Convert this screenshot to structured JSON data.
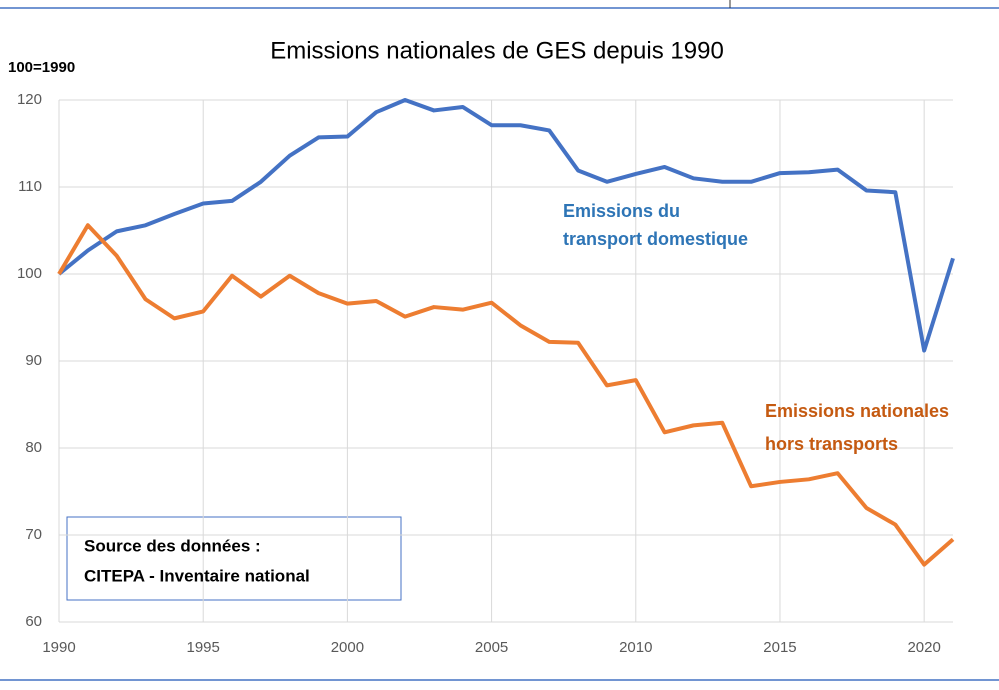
{
  "chart_data": {
    "type": "line",
    "title": "Emissions nationales de GES depuis 1990",
    "y_axis_label": "100=1990",
    "x": [
      1990,
      1991,
      1992,
      1993,
      1994,
      1995,
      1996,
      1997,
      1998,
      1999,
      2000,
      2001,
      2002,
      2003,
      2004,
      2005,
      2006,
      2007,
      2008,
      2009,
      2010,
      2011,
      2012,
      2013,
      2014,
      2015,
      2016,
      2017,
      2018,
      2019,
      2020,
      2021
    ],
    "series": [
      {
        "color": "#4472c4",
        "values": [
          100,
          102.7,
          104.9,
          105.6,
          106.9,
          108.1,
          108.4,
          110.6,
          113.6,
          115.7,
          115.8,
          118.6,
          120.0,
          118.8,
          119.2,
          117.1,
          117.1,
          116.5,
          111.9,
          110.6,
          111.5,
          112.3,
          111.0,
          110.6,
          110.6,
          111.6,
          111.7,
          112.0,
          109.6,
          109.4,
          91.2,
          101.8
        ]
      },
      {
        "color": "#ed7d31",
        "values": [
          100,
          105.6,
          102.1,
          97.1,
          94.9,
          95.7,
          99.8,
          97.4,
          99.8,
          97.8,
          96.6,
          96.9,
          95.1,
          96.2,
          95.9,
          96.7,
          94.1,
          92.2,
          92.1,
          87.2,
          87.8,
          81.8,
          82.6,
          82.9,
          75.6,
          76.1,
          76.4,
          77.1,
          73.1,
          71.2,
          66.6,
          69.5
        ]
      }
    ],
    "annotations": [
      {
        "lines": [
          "Emissions du",
          "transport domestique"
        ],
        "color": "#2e75b6"
      },
      {
        "lines": [
          "Emissions nationales",
          "hors transports"
        ],
        "color": "#c55a11"
      },
      {
        "lines": [
          "Source des données :",
          "CITEPA - Inventaire national"
        ],
        "color": "#000000"
      }
    ],
    "xlim": [
      1990,
      2021
    ],
    "xticks": [
      1990,
      1995,
      2000,
      2005,
      2010,
      2015,
      2020
    ],
    "ylim": [
      60,
      120
    ],
    "yticks": [
      60,
      70,
      80,
      90,
      100,
      110,
      120
    ],
    "grid": true
  }
}
